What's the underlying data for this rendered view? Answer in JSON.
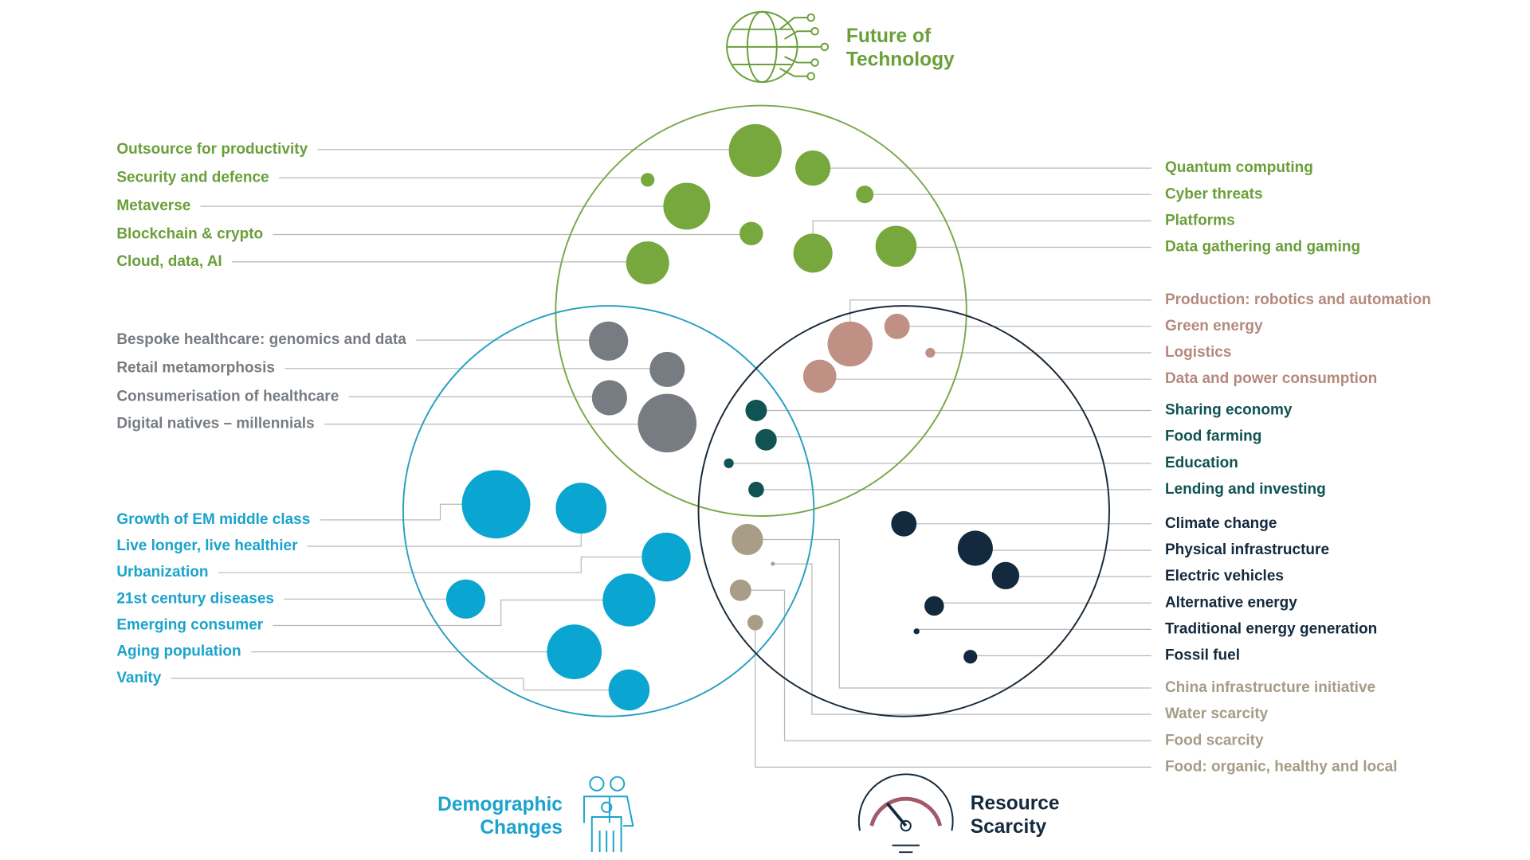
{
  "themes": {
    "technology": [
      "Future of",
      "Technology"
    ],
    "demographic": [
      "Demographic",
      "Changes"
    ],
    "resource": [
      "Resource",
      "Scarcity"
    ]
  },
  "groups": [
    {
      "color": "#6a9f3a",
      "items": [
        "Outsource for productivity",
        "Security and defence",
        "Metaverse",
        "Blockchain & crypto",
        "Cloud, data, AI"
      ]
    },
    {
      "color": "#6a9f3a",
      "items": [
        "Quantum computing",
        "Cyber threats",
        "Platforms",
        "Data gathering and gaming"
      ]
    },
    {
      "color": "#b5897d",
      "items": [
        "Production: robotics and automation",
        "Green energy",
        "Logistics",
        "Data and power consumption"
      ]
    },
    {
      "color": "#767c82",
      "items": [
        "Bespoke healthcare: genomics and data",
        "Retail metamorphosis",
        "Consumerisation of healthcare",
        "Digital natives – millennials"
      ]
    },
    {
      "color": "#0f5352",
      "items": [
        "Sharing economy",
        "Food farming",
        "Education",
        "Lending and investing"
      ]
    },
    {
      "color": "#13293d",
      "items": [
        "Climate change",
        "Physical infrastructure",
        "Electric vehicles",
        "Alternative energy",
        "Traditional energy generation",
        "Fossil fuel"
      ]
    },
    {
      "color": "#1aa3cc",
      "items": [
        "Growth of EM middle class",
        "Live longer, live healthier",
        "Urbanization",
        "21st century diseases",
        "Emerging consumer",
        "Aging population",
        "Vanity"
      ]
    },
    {
      "color": "#a59c86",
      "items": [
        "China infrastructure initiative",
        "Water scarcity",
        "Food scarcity",
        "Food: organic, healthy and local"
      ]
    }
  ]
}
